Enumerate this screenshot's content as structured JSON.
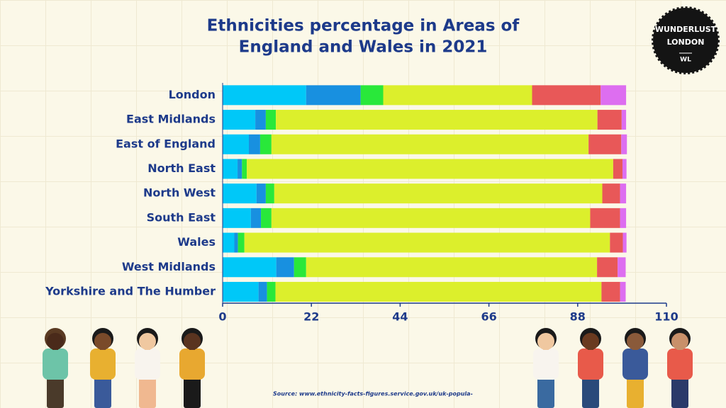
{
  "chart_data": {
    "type": "stacked-bar-horizontal",
    "title": [
      "Ethnicities percentage in Areas of",
      "England and Wales in 2021"
    ],
    "categories": [
      "London",
      "East Midlands",
      "East of England",
      "North East",
      "North West",
      "South East",
      "Wales",
      "West Midlands",
      "Yorkshire and The Humber"
    ],
    "bold_category": "Wales",
    "series": [
      {
        "color": "#00c8f8",
        "values": [
          20.7,
          8.1,
          6.5,
          3.7,
          8.4,
          7.0,
          2.9,
          13.3,
          8.9
        ]
      },
      {
        "color": "#1890e0",
        "values": [
          13.5,
          2.6,
          2.8,
          1.1,
          2.3,
          2.5,
          0.9,
          4.4,
          2.1
        ]
      },
      {
        "color": "#29e83a",
        "values": [
          5.6,
          2.5,
          2.8,
          1.2,
          2.1,
          2.6,
          1.6,
          3.0,
          2.1
        ]
      },
      {
        "color": "#dcef2c",
        "values": [
          36.9,
          79.7,
          78.6,
          90.8,
          81.3,
          79.0,
          90.6,
          72.1,
          80.8
        ]
      },
      {
        "color": "#e85858",
        "values": [
          17.0,
          6.0,
          8.1,
          2.3,
          4.4,
          7.4,
          3.2,
          5.1,
          4.6
        ]
      },
      {
        "color": "#dd6ef0",
        "values": [
          6.3,
          1.1,
          1.4,
          1.0,
          1.5,
          1.5,
          0.9,
          2.0,
          1.4
        ]
      }
    ],
    "xlim": [
      0,
      110
    ],
    "xticks": [
      0,
      22,
      44,
      66,
      88,
      110
    ],
    "grid": false,
    "source": "Source: www.ethnicity-facts-figures.service.gov.uk/uk-popula-"
  },
  "logo": {
    "lines": [
      "WUNDERLUST",
      "LONDON",
      "WL"
    ]
  }
}
